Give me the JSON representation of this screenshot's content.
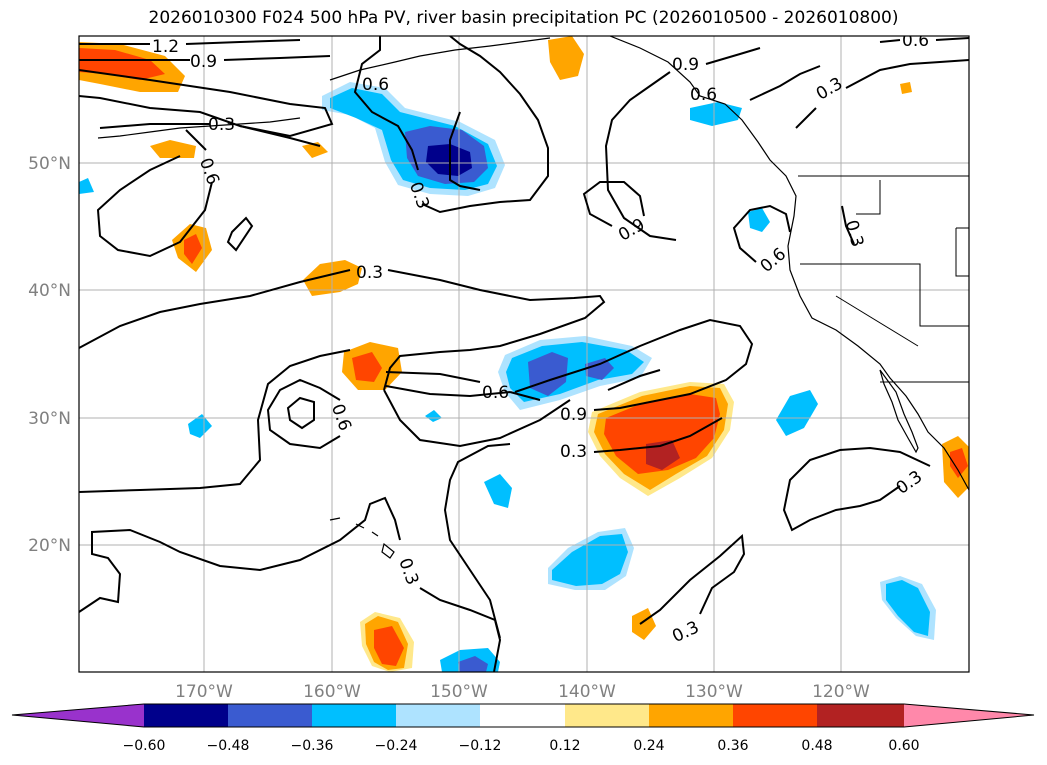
{
  "title": "2026010300 F024 500 hPa PV, river basin precipitation PC (2026010500 - 2026010800)",
  "map": {
    "lat_labels": [
      "50°N",
      "40°N",
      "30°N",
      "20°N"
    ],
    "lon_labels": [
      "170°W",
      "160°W",
      "150°W",
      "140°W",
      "130°W",
      "120°W"
    ],
    "contour_labels": [
      "1.2",
      "0.9",
      "0.6",
      "0.3",
      "0.6",
      "0.3",
      "0.9",
      "0.6",
      "0.9",
      "0.6",
      "0.3",
      "0.3",
      "0.6",
      "0.3",
      "0.6",
      "0.6",
      "0.9",
      "0.3",
      "0.3",
      "0.3",
      "0.3"
    ],
    "colors": {
      "line": "#000000",
      "grid": "#b0b0b0",
      "tick_label": "#808080"
    }
  },
  "colorbar": {
    "ticks": [
      "−0.60",
      "−0.48",
      "−0.36",
      "−0.24",
      "−0.12",
      "0.12",
      "0.24",
      "0.36",
      "0.48",
      "0.60"
    ],
    "colors": [
      "#9932cc",
      "#00008b",
      "#3a5bd0",
      "#00bfff",
      "#aee3ff",
      "#ffffff",
      "#ffe88a",
      "#ffa500",
      "#ff4500",
      "#b22222",
      "#ff88aa"
    ]
  }
}
